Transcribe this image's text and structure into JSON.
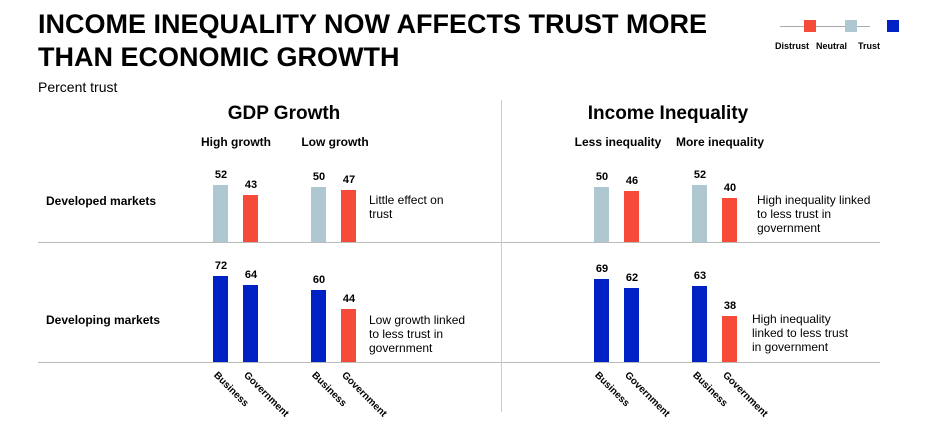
{
  "title": "INCOME INEQUALITY NOW AFFECTS TRUST MORE THAN ECONOMIC GROWTH",
  "subtitle": "Percent trust",
  "legend": [
    {
      "label": "Distrust",
      "color": "#F54B38"
    },
    {
      "label": "Neutral",
      "color": "#AEC7D1"
    },
    {
      "label": "Trust",
      "color": "#0022C4"
    }
  ],
  "chart_data": {
    "type": "bar",
    "panels": [
      {
        "title": "GDP Growth",
        "groups": [
          "High growth",
          "Low growth"
        ]
      },
      {
        "title": "Income Inequality",
        "groups": [
          "Less inequality",
          "More inequality"
        ]
      }
    ],
    "rows": [
      "Developed markets",
      "Developing markets"
    ],
    "categories": [
      "Business",
      "Government"
    ],
    "values": {
      "developed": [
        [
          52,
          43
        ],
        [
          50,
          47
        ],
        [
          50,
          46
        ],
        [
          52,
          40
        ]
      ],
      "developing": [
        [
          72,
          64
        ],
        [
          60,
          44
        ],
        [
          69,
          62
        ],
        [
          63,
          38
        ]
      ]
    },
    "colors": {
      "developed": [
        [
          "neutral",
          "distrust"
        ],
        [
          "neutral",
          "distrust"
        ],
        [
          "neutral",
          "distrust"
        ],
        [
          "neutral",
          "distrust"
        ]
      ],
      "developing": [
        [
          "trust",
          "trust"
        ],
        [
          "trust",
          "distrust"
        ],
        [
          "trust",
          "trust"
        ],
        [
          "trust",
          "distrust"
        ]
      ]
    },
    "annotations": {
      "gdp_developed": "Little effect on trust",
      "gdp_developing": "Low growth linked to less trust in government",
      "ineq_developed": "High inequality linked to less trust in government",
      "ineq_developing": "High inequality linked to less trust in government"
    }
  }
}
